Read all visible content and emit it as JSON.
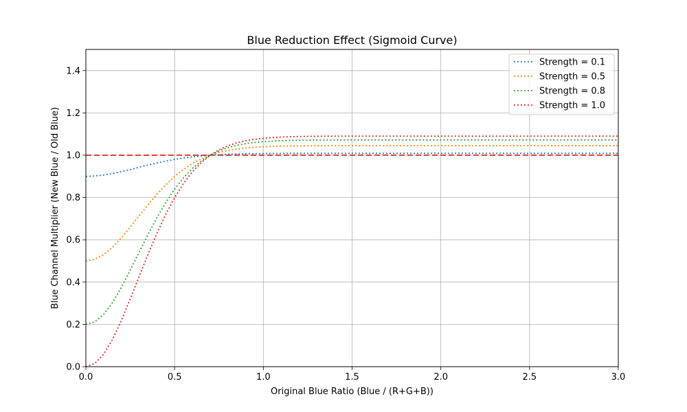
{
  "chart_data": {
    "type": "line",
    "title": "Blue Reduction Effect (Sigmoid Curve)",
    "xlabel": "Original Blue Ratio (Blue / (R+G+B))",
    "ylabel": "Blue Channel Multiplier (New Blue / Old Blue)",
    "xlim": [
      0,
      3.0
    ],
    "ylim": [
      0,
      1.5
    ],
    "x_ticks": [
      0,
      0.5,
      1.0,
      1.5,
      2.0,
      2.5,
      3.0
    ],
    "x_tick_labels": [
      "0.0",
      "0.5",
      "1.0",
      "1.5",
      "2.0",
      "2.5",
      "3.0"
    ],
    "y_ticks": [
      0,
      0.2,
      0.4,
      0.6,
      0.8,
      1.0,
      1.2,
      1.4
    ],
    "y_tick_labels": [
      "0.0",
      "0.2",
      "0.4",
      "0.6",
      "0.8",
      "1.0",
      "1.2",
      "1.4"
    ],
    "grid": true,
    "legend_position": "top-right",
    "reference_line": {
      "y": 1.0,
      "color": "#d62728",
      "style": "dashed"
    },
    "series": [
      {
        "name": "Strength = 0.1",
        "color": "#1f77b4",
        "style": "dotted",
        "x": [
          0,
          0.05,
          0.1,
          0.15,
          0.2,
          0.25,
          0.3,
          0.35,
          0.4,
          0.45,
          0.5,
          0.55,
          0.6,
          0.65,
          0.7,
          0.75,
          0.8,
          0.85,
          0.9,
          0.95,
          1.0,
          1.05,
          1.1,
          1.15,
          1.2,
          1.3,
          1.4,
          1.5,
          1.75,
          2.0,
          2.25,
          2.5,
          2.75,
          3.0
        ],
        "y": [
          0.9,
          0.9015,
          0.9059,
          0.9129,
          0.9219,
          0.932,
          0.9426,
          0.9532,
          0.963,
          0.972,
          0.9799,
          0.9866,
          0.9921,
          0.9965,
          0.9999,
          1.0025,
          1.0044,
          1.0058,
          1.0068,
          1.0075,
          1.008,
          1.0083,
          1.0086,
          1.0087,
          1.0088,
          1.009,
          1.009,
          1.009,
          1.009,
          1.009,
          1.009,
          1.009,
          1.009,
          1.009
        ]
      },
      {
        "name": "Strength = 0.5",
        "color": "#ff7f0e",
        "style": "dotted",
        "x": [
          0,
          0.05,
          0.1,
          0.15,
          0.2,
          0.25,
          0.3,
          0.35,
          0.4,
          0.45,
          0.5,
          0.55,
          0.6,
          0.65,
          0.7,
          0.75,
          0.8,
          0.85,
          0.9,
          0.95,
          1.0,
          1.05,
          1.1,
          1.15,
          1.2,
          1.3,
          1.4,
          1.5,
          1.75,
          2.0,
          2.25,
          2.5,
          2.75,
          3.0
        ],
        "y": [
          0.5,
          0.5075,
          0.5294,
          0.5643,
          0.6093,
          0.6601,
          0.7131,
          0.7655,
          0.8149,
          0.8599,
          0.8995,
          0.9332,
          0.9606,
          0.9825,
          0.9997,
          1.0125,
          1.0222,
          1.0292,
          1.0341,
          1.0375,
          1.0399,
          1.0416,
          1.0428,
          1.0436,
          1.0442,
          1.0448,
          1.045,
          1.045,
          1.045,
          1.045,
          1.045,
          1.045,
          1.045,
          1.045
        ]
      },
      {
        "name": "Strength = 0.8",
        "color": "#2ca02c",
        "style": "dotted",
        "x": [
          0,
          0.05,
          0.1,
          0.15,
          0.2,
          0.25,
          0.3,
          0.35,
          0.4,
          0.45,
          0.5,
          0.55,
          0.6,
          0.65,
          0.7,
          0.75,
          0.8,
          0.85,
          0.9,
          0.95,
          1.0,
          1.05,
          1.1,
          1.15,
          1.2,
          1.3,
          1.4,
          1.5,
          1.75,
          2.0,
          2.25,
          2.5,
          2.75,
          3.0
        ],
        "y": [
          0.2,
          0.212,
          0.2471,
          0.3029,
          0.3748,
          0.4562,
          0.5409,
          0.6248,
          0.7039,
          0.7758,
          0.8392,
          0.8931,
          0.937,
          0.972,
          0.9995,
          1.02,
          1.0355,
          1.0468,
          1.0546,
          1.06,
          1.0638,
          1.0666,
          1.0685,
          1.0698,
          1.0707,
          1.0716,
          1.072,
          1.072,
          1.072,
          1.072,
          1.072,
          1.072,
          1.072,
          1.072
        ]
      },
      {
        "name": "Strength = 1.0",
        "color": "#d62728",
        "style": "dotted",
        "x": [
          0,
          0.05,
          0.1,
          0.15,
          0.2,
          0.25,
          0.3,
          0.35,
          0.4,
          0.45,
          0.5,
          0.55,
          0.6,
          0.65,
          0.7,
          0.75,
          0.8,
          0.85,
          0.9,
          0.95,
          1.0,
          1.05,
          1.1,
          1.15,
          1.2,
          1.3,
          1.4,
          1.5,
          1.75,
          2.0,
          2.25,
          2.5,
          2.75,
          3.0
        ],
        "y": [
          0.0,
          0.015,
          0.0589,
          0.1286,
          0.2185,
          0.3202,
          0.4262,
          0.531,
          0.6299,
          0.7198,
          0.799,
          0.8664,
          0.9213,
          0.965,
          0.9994,
          1.025,
          1.0444,
          1.0585,
          1.0683,
          1.075,
          1.0798,
          1.0833,
          1.0856,
          1.0873,
          1.0884,
          1.0895,
          1.09,
          1.09,
          1.09,
          1.09,
          1.09,
          1.09,
          1.09,
          1.09
        ]
      }
    ]
  }
}
